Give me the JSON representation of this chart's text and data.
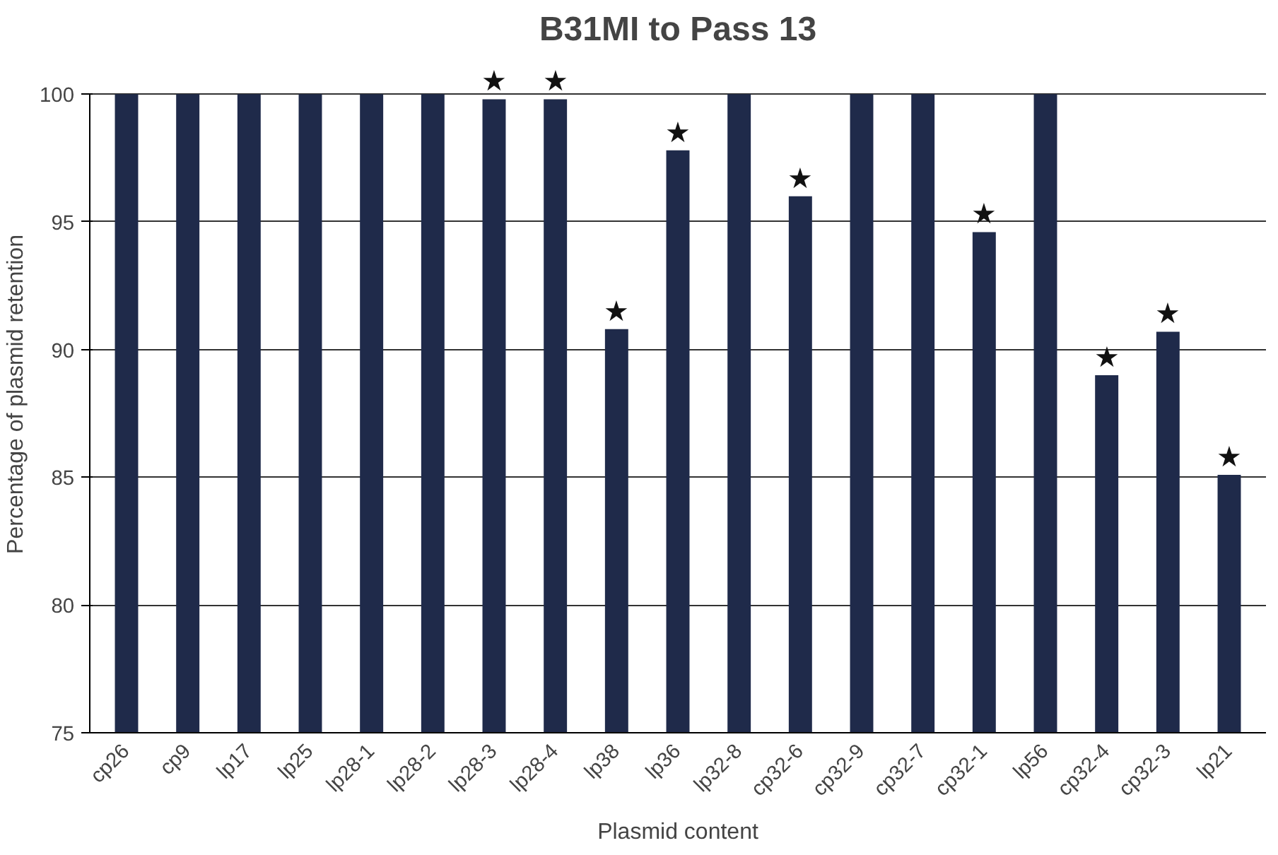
{
  "chart_data": {
    "type": "bar",
    "title": "B31MI to Pass 13",
    "xlabel": "Plasmid content",
    "ylabel": "Percentage of plasmid retention",
    "categories": [
      "cp26",
      "cp9",
      "lp17",
      "lp25",
      "lp28-1",
      "lp28-2",
      "lp28-3",
      "lp28-4",
      "lp38",
      "lp36",
      "lp32-8",
      "cp32-6",
      "cp32-9",
      "cp32-7",
      "cp32-1",
      "lp56",
      "cp32-4",
      "cp32-3",
      "lp21"
    ],
    "values": [
      100,
      100,
      100,
      100,
      100,
      100,
      99.8,
      99.8,
      90.8,
      97.8,
      100,
      96,
      100,
      100,
      94.6,
      100,
      89,
      90.7,
      85.1
    ],
    "value_labels": [
      null,
      null,
      null,
      null,
      null,
      null,
      "★",
      "★",
      "★",
      "★",
      null,
      "★",
      null,
      null,
      "★",
      null,
      "★",
      "★",
      "★"
    ],
    "color": "#1f2a4a",
    "ylim": [
      75,
      100
    ],
    "yticks": [
      75,
      80,
      85,
      90,
      95,
      100
    ],
    "grid": "y"
  }
}
